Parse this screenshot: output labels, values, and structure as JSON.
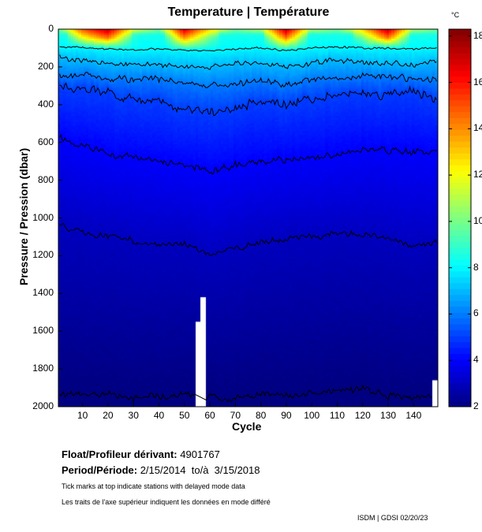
{
  "title": "Temperature | Température",
  "colorbar": {
    "unit": "°C",
    "range": [
      2,
      18.3
    ],
    "ticks": [
      "2",
      "4",
      "6",
      "8",
      "10",
      "12",
      "14",
      "16",
      "18"
    ],
    "colormap": "jet"
  },
  "footer": {
    "float_label": "Float/Profileur dérivant:",
    "float_id": "4901767",
    "period_label": "Period/Période:",
    "period_value": "2/15/2014  to/à  3/15/2018",
    "note_en": "Tick marks at top indicate stations with delayed mode data",
    "note_fr": "Les traits de l'axe supérieur indiquent les données en mode différé",
    "credit": "ISDM | GDSI  02/20/23"
  },
  "chart_data": {
    "type": "heatmap",
    "title": "Temperature | Température",
    "xlabel": "Cycle",
    "ylabel": "Pressure / Pression (dbar)",
    "xlim": [
      0.5,
      149.5
    ],
    "ylim": [
      2000,
      0
    ],
    "y_reversed": true,
    "xticks": [
      "10",
      "20",
      "30",
      "40",
      "50",
      "60",
      "70",
      "80",
      "90",
      "100",
      "110",
      "120",
      "130",
      "140"
    ],
    "yticks": [
      "0",
      "200",
      "400",
      "600",
      "800",
      "1000",
      "1200",
      "1400",
      "1600",
      "1800",
      "2000"
    ],
    "contour_levels": [
      2,
      3,
      4,
      5,
      6,
      7,
      8
    ],
    "isotherm_sample_cycles": [
      1,
      10,
      20,
      30,
      40,
      50,
      60,
      70,
      80,
      90,
      100,
      110,
      120,
      130,
      140,
      149
    ],
    "isotherm_depths_dbar": {
      "8": [
        95,
        100,
        105,
        110,
        105,
        110,
        115,
        105,
        100,
        115,
        100,
        95,
        100,
        100,
        105,
        100
      ],
      "7": [
        150,
        170,
        180,
        190,
        190,
        200,
        200,
        180,
        180,
        200,
        180,
        160,
        180,
        180,
        190,
        170
      ],
      "6": [
        240,
        240,
        260,
        270,
        260,
        280,
        300,
        290,
        270,
        300,
        270,
        260,
        250,
        250,
        260,
        270
      ],
      "5": [
        310,
        310,
        340,
        370,
        380,
        430,
        440,
        420,
        380,
        400,
        370,
        340,
        340,
        350,
        330,
        380
      ],
      "4": [
        580,
        620,
        660,
        680,
        700,
        720,
        760,
        720,
        700,
        690,
        680,
        660,
        630,
        650,
        650,
        640
      ],
      "3": [
        1035,
        1080,
        1100,
        1120,
        1140,
        1140,
        1200,
        1160,
        1130,
        1110,
        1100,
        1080,
        1090,
        1110,
        1150,
        1130
      ],
      "2": [
        1940,
        1930,
        1935,
        1950,
        1945,
        1930,
        1950,
        1960,
        1930,
        1940,
        1925,
        1920,
        1900,
        1940,
        1950,
        1940
      ]
    },
    "surface_temperature_sample": [
      10,
      15,
      17.5,
      12,
      10,
      17,
      13,
      10,
      11,
      17.5,
      11,
      10,
      13,
      17.5,
      11,
      10
    ],
    "no_data": [
      {
        "cycles": [
          55,
          56
        ],
        "from_dbar": 1550
      },
      {
        "cycles": [
          57,
          58
        ],
        "from_dbar": 1420
      },
      {
        "cycles": [
          148,
          149
        ],
        "from_dbar": 1860
      }
    ],
    "grid": false,
    "legend": "colorbar-right"
  }
}
